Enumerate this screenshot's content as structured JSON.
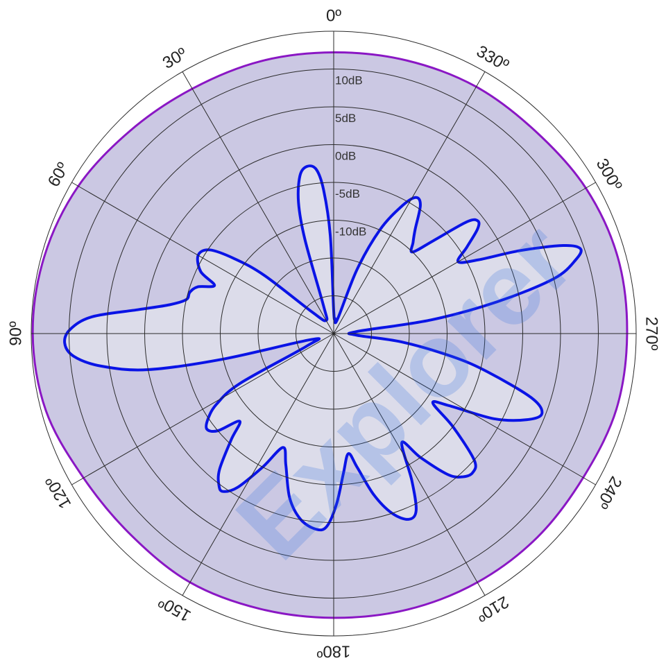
{
  "chart_data": {
    "type": "polar",
    "angular_direction": "counterclockwise",
    "zero_at": "top",
    "angle_tick_labels": [
      "0º",
      "30º",
      "60º",
      "90º",
      "120º",
      "150º",
      "180º",
      "210º",
      "240º",
      "270º",
      "300º",
      "330º"
    ],
    "angle_ticks_deg": [
      0,
      30,
      60,
      90,
      120,
      150,
      180,
      210,
      240,
      270,
      300,
      330
    ],
    "radial_unit": "dB",
    "radial_range": [
      -25,
      15
    ],
    "radial_ring_values": [
      -20,
      -15,
      -10,
      -5,
      0,
      5,
      10,
      15
    ],
    "radial_tick_labels": [
      "10dB",
      "5dB",
      "0dB",
      "-5dB",
      "-10dB"
    ],
    "radial_tick_values": [
      10,
      5,
      0,
      -5,
      -10
    ],
    "grid": true,
    "series": [
      {
        "role": "envelope",
        "color": "#8a17c4",
        "fill": "#cbc8e3",
        "points": [
          [
            0,
            12.2
          ],
          [
            15,
            12.3
          ],
          [
            30,
            12.4
          ],
          [
            45,
            13.0
          ],
          [
            60,
            14.0
          ],
          [
            75,
            14.6
          ],
          [
            90,
            14.8
          ],
          [
            105,
            14.4
          ],
          [
            120,
            13.2
          ],
          [
            135,
            12.8
          ],
          [
            150,
            13.0
          ],
          [
            165,
            12.7
          ],
          [
            180,
            12.6
          ],
          [
            195,
            12.8
          ],
          [
            210,
            13.0
          ],
          [
            225,
            13.1
          ],
          [
            240,
            13.1
          ],
          [
            255,
            13.7
          ],
          [
            270,
            13.8
          ],
          [
            285,
            13.9
          ],
          [
            300,
            13.5
          ],
          [
            315,
            12.8
          ],
          [
            330,
            12.7
          ],
          [
            345,
            12.4
          ]
        ]
      },
      {
        "role": "pattern",
        "color": "#0a14e6",
        "fill": "#dcdcea",
        "points": [
          [
            0,
            -22
          ],
          [
            2,
            -12
          ],
          [
            4,
            -6
          ],
          [
            6,
            -3.2
          ],
          [
            9,
            -2.6
          ],
          [
            12,
            -3.6
          ],
          [
            15,
            -7
          ],
          [
            17,
            -12
          ],
          [
            20,
            -21
          ],
          [
            30,
            -23
          ],
          [
            45,
            -21
          ],
          [
            50,
            -13
          ],
          [
            53,
            -8.5
          ],
          [
            56,
            -5.2
          ],
          [
            60,
            -4.3
          ],
          [
            65,
            -5.6
          ],
          [
            68,
            -8
          ],
          [
            71,
            -6
          ],
          [
            74,
            -5.2
          ],
          [
            77,
            -5
          ],
          [
            80,
            -3
          ],
          [
            83,
            1
          ],
          [
            86,
            7
          ],
          [
            89,
            9.8
          ],
          [
            92,
            10.6
          ],
          [
            95,
            9.5
          ],
          [
            98,
            6
          ],
          [
            101,
            0
          ],
          [
            103,
            -10
          ],
          [
            105,
            -22
          ],
          [
            115,
            -21
          ],
          [
            118,
            -11
          ],
          [
            121,
            -7
          ],
          [
            124,
            -5
          ],
          [
            127,
            -4
          ],
          [
            130,
            -5
          ],
          [
            133,
            -8
          ],
          [
            136,
            -5.5
          ],
          [
            140,
            -1.5
          ],
          [
            143,
            0.2
          ],
          [
            145,
            0.5
          ],
          [
            148,
            -1
          ],
          [
            152,
            -5
          ],
          [
            156,
            -8.5
          ],
          [
            160,
            -6.5
          ],
          [
            165,
            -2.5
          ],
          [
            170,
            0
          ],
          [
            175,
            1
          ],
          [
            178,
            0.5
          ],
          [
            181,
            -2.5
          ],
          [
            184,
            -6.5
          ],
          [
            187,
            -9
          ],
          [
            190,
            -7
          ],
          [
            194,
            -3
          ],
          [
            198,
            0
          ],
          [
            202,
            1.5
          ],
          [
            205,
            0.8
          ],
          [
            208,
            -3
          ],
          [
            212,
            -8
          ],
          [
            215,
            -5
          ],
          [
            219,
            -1
          ],
          [
            222,
            0.5
          ],
          [
            225,
            1
          ],
          [
            228,
            0
          ],
          [
            232,
            -5
          ],
          [
            235,
            -9
          ],
          [
            238,
            -7
          ],
          [
            242,
            -1
          ],
          [
            246,
            3
          ],
          [
            249,
            4.5
          ],
          [
            252,
            2.5
          ],
          [
            256,
            -4
          ],
          [
            259,
            -9
          ],
          [
            263,
            -16
          ],
          [
            266,
            -22
          ],
          [
            275,
            -22
          ],
          [
            278,
            -12
          ],
          [
            281,
            -3
          ],
          [
            284,
            5
          ],
          [
            287,
            8.5
          ],
          [
            289,
            9.5
          ],
          [
            291,
            7.5
          ],
          [
            294,
            2
          ],
          [
            297,
            -3.5
          ],
          [
            300,
            -6
          ],
          [
            303,
            -4
          ],
          [
            306,
            -1.5
          ],
          [
            308,
            -0.8
          ],
          [
            310,
            -2
          ],
          [
            313,
            -7
          ],
          [
            316,
            -10
          ],
          [
            319,
            -9
          ],
          [
            322,
            -7.5
          ],
          [
            326,
            -4.5
          ],
          [
            329,
            -4
          ],
          [
            332,
            -6
          ],
          [
            336,
            -10
          ],
          [
            340,
            -16
          ],
          [
            345,
            -23
          ],
          [
            355,
            -23
          ],
          [
            360,
            -22
          ]
        ]
      }
    ]
  },
  "watermark": {
    "text": "Explorer",
    "color": "#2f6fe0"
  }
}
